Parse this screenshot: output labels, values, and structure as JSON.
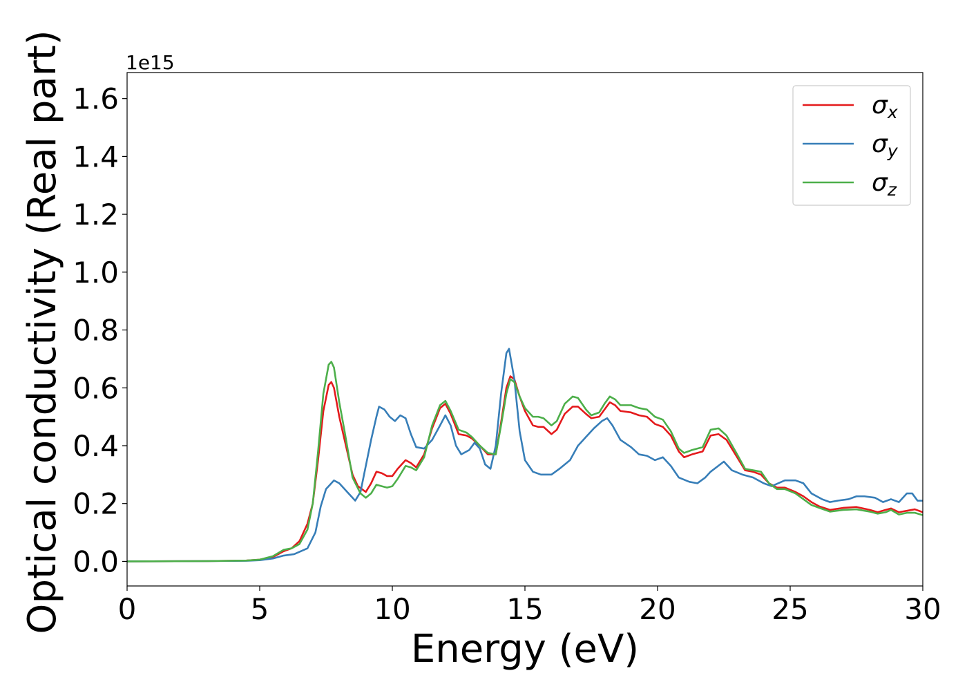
{
  "chart_data": {
    "type": "line",
    "title": "",
    "xlabel": "Energy (eV)",
    "ylabel": "Optical conductivity (Real part)",
    "y_offset_label": "1e15",
    "y_scale_multiplier": 1000000000000000.0,
    "xlim": [
      0,
      30
    ],
    "ylim": [
      -0.085,
      1.69
    ],
    "xticks": [
      0,
      5,
      10,
      15,
      20,
      25,
      30
    ],
    "xtick_labels": [
      "0",
      "5",
      "10",
      "15",
      "20",
      "25",
      "30"
    ],
    "yticks": [
      0.0,
      0.2,
      0.4,
      0.6,
      0.8,
      1.0,
      1.2,
      1.4,
      1.6
    ],
    "ytick_labels": [
      "0.0",
      "0.2",
      "0.4",
      "0.6",
      "0.8",
      "1.0",
      "1.2",
      "1.4",
      "1.6"
    ],
    "grid": false,
    "legend_position": "top-right",
    "series": [
      {
        "name": "σx",
        "symbol": "σ",
        "subscript": "x",
        "color": "#e41a1c",
        "points": [
          [
            0,
            0
          ],
          [
            3,
            0.001
          ],
          [
            4.5,
            0.003
          ],
          [
            5,
            0.006
          ],
          [
            5.5,
            0.015
          ],
          [
            5.9,
            0.035
          ],
          [
            6.2,
            0.045
          ],
          [
            6.5,
            0.07
          ],
          [
            6.8,
            0.13
          ],
          [
            7.0,
            0.2
          ],
          [
            7.2,
            0.35
          ],
          [
            7.4,
            0.52
          ],
          [
            7.6,
            0.61
          ],
          [
            7.7,
            0.62
          ],
          [
            7.8,
            0.6
          ],
          [
            8.0,
            0.5
          ],
          [
            8.2,
            0.42
          ],
          [
            8.5,
            0.3
          ],
          [
            8.7,
            0.26
          ],
          [
            9.0,
            0.24
          ],
          [
            9.2,
            0.27
          ],
          [
            9.4,
            0.31
          ],
          [
            9.6,
            0.305
          ],
          [
            9.8,
            0.295
          ],
          [
            10.0,
            0.295
          ],
          [
            10.2,
            0.32
          ],
          [
            10.5,
            0.35
          ],
          [
            10.7,
            0.34
          ],
          [
            10.9,
            0.325
          ],
          [
            11.2,
            0.37
          ],
          [
            11.5,
            0.46
          ],
          [
            11.8,
            0.53
          ],
          [
            12.0,
            0.545
          ],
          [
            12.2,
            0.51
          ],
          [
            12.5,
            0.44
          ],
          [
            12.8,
            0.435
          ],
          [
            13.0,
            0.425
          ],
          [
            13.3,
            0.4
          ],
          [
            13.6,
            0.37
          ],
          [
            13.9,
            0.37
          ],
          [
            14.1,
            0.48
          ],
          [
            14.3,
            0.6
          ],
          [
            14.45,
            0.64
          ],
          [
            14.6,
            0.63
          ],
          [
            14.8,
            0.57
          ],
          [
            15.0,
            0.52
          ],
          [
            15.3,
            0.47
          ],
          [
            15.5,
            0.465
          ],
          [
            15.7,
            0.465
          ],
          [
            16.0,
            0.44
          ],
          [
            16.2,
            0.455
          ],
          [
            16.5,
            0.51
          ],
          [
            16.8,
            0.535
          ],
          [
            17.0,
            0.535
          ],
          [
            17.3,
            0.51
          ],
          [
            17.5,
            0.495
          ],
          [
            17.8,
            0.5
          ],
          [
            18.0,
            0.525
          ],
          [
            18.2,
            0.55
          ],
          [
            18.4,
            0.54
          ],
          [
            18.6,
            0.52
          ],
          [
            19.0,
            0.515
          ],
          [
            19.3,
            0.505
          ],
          [
            19.6,
            0.5
          ],
          [
            19.9,
            0.475
          ],
          [
            20.2,
            0.465
          ],
          [
            20.5,
            0.435
          ],
          [
            20.8,
            0.38
          ],
          [
            21.0,
            0.36
          ],
          [
            21.3,
            0.37
          ],
          [
            21.7,
            0.38
          ],
          [
            22.0,
            0.435
          ],
          [
            22.3,
            0.44
          ],
          [
            22.6,
            0.42
          ],
          [
            23.0,
            0.36
          ],
          [
            23.3,
            0.315
          ],
          [
            23.6,
            0.31
          ],
          [
            23.9,
            0.3
          ],
          [
            24.2,
            0.27
          ],
          [
            24.5,
            0.255
          ],
          [
            24.8,
            0.255
          ],
          [
            25.2,
            0.24
          ],
          [
            25.5,
            0.225
          ],
          [
            25.8,
            0.205
          ],
          [
            26.1,
            0.19
          ],
          [
            26.5,
            0.178
          ],
          [
            27.0,
            0.185
          ],
          [
            27.5,
            0.188
          ],
          [
            28.0,
            0.178
          ],
          [
            28.3,
            0.17
          ],
          [
            28.6,
            0.178
          ],
          [
            28.8,
            0.183
          ],
          [
            29.1,
            0.17
          ],
          [
            29.4,
            0.175
          ],
          [
            29.7,
            0.18
          ],
          [
            30.0,
            0.17
          ]
        ]
      },
      {
        "name": "σy",
        "symbol": "σ",
        "subscript": "y",
        "color": "#377eb8",
        "points": [
          [
            0,
            0
          ],
          [
            3,
            0.001
          ],
          [
            4.5,
            0.002
          ],
          [
            5,
            0.004
          ],
          [
            5.5,
            0.01
          ],
          [
            5.9,
            0.02
          ],
          [
            6.3,
            0.025
          ],
          [
            6.8,
            0.045
          ],
          [
            7.1,
            0.1
          ],
          [
            7.3,
            0.19
          ],
          [
            7.5,
            0.25
          ],
          [
            7.8,
            0.28
          ],
          [
            8.0,
            0.27
          ],
          [
            8.3,
            0.24
          ],
          [
            8.6,
            0.21
          ],
          [
            8.8,
            0.24
          ],
          [
            9.0,
            0.33
          ],
          [
            9.2,
            0.42
          ],
          [
            9.4,
            0.5
          ],
          [
            9.5,
            0.535
          ],
          [
            9.7,
            0.525
          ],
          [
            9.9,
            0.5
          ],
          [
            10.1,
            0.485
          ],
          [
            10.3,
            0.505
          ],
          [
            10.5,
            0.495
          ],
          [
            10.7,
            0.44
          ],
          [
            10.9,
            0.395
          ],
          [
            11.2,
            0.39
          ],
          [
            11.5,
            0.42
          ],
          [
            11.8,
            0.47
          ],
          [
            12.0,
            0.505
          ],
          [
            12.2,
            0.47
          ],
          [
            12.4,
            0.4
          ],
          [
            12.6,
            0.37
          ],
          [
            12.9,
            0.385
          ],
          [
            13.1,
            0.41
          ],
          [
            13.3,
            0.39
          ],
          [
            13.5,
            0.335
          ],
          [
            13.7,
            0.32
          ],
          [
            13.9,
            0.4
          ],
          [
            14.1,
            0.58
          ],
          [
            14.3,
            0.72
          ],
          [
            14.4,
            0.735
          ],
          [
            14.6,
            0.63
          ],
          [
            14.8,
            0.45
          ],
          [
            15.0,
            0.35
          ],
          [
            15.3,
            0.31
          ],
          [
            15.6,
            0.3
          ],
          [
            16.0,
            0.3
          ],
          [
            16.3,
            0.32
          ],
          [
            16.7,
            0.35
          ],
          [
            17.0,
            0.4
          ],
          [
            17.3,
            0.43
          ],
          [
            17.6,
            0.46
          ],
          [
            17.9,
            0.485
          ],
          [
            18.1,
            0.495
          ],
          [
            18.3,
            0.47
          ],
          [
            18.6,
            0.42
          ],
          [
            19.0,
            0.395
          ],
          [
            19.3,
            0.37
          ],
          [
            19.6,
            0.365
          ],
          [
            19.9,
            0.35
          ],
          [
            20.2,
            0.36
          ],
          [
            20.5,
            0.33
          ],
          [
            20.8,
            0.29
          ],
          [
            21.2,
            0.275
          ],
          [
            21.5,
            0.27
          ],
          [
            21.8,
            0.29
          ],
          [
            22.0,
            0.31
          ],
          [
            22.5,
            0.345
          ],
          [
            22.8,
            0.315
          ],
          [
            23.2,
            0.3
          ],
          [
            23.6,
            0.29
          ],
          [
            24.0,
            0.27
          ],
          [
            24.3,
            0.26
          ],
          [
            24.8,
            0.28
          ],
          [
            25.2,
            0.28
          ],
          [
            25.5,
            0.27
          ],
          [
            25.8,
            0.235
          ],
          [
            26.2,
            0.215
          ],
          [
            26.5,
            0.205
          ],
          [
            26.8,
            0.21
          ],
          [
            27.2,
            0.215
          ],
          [
            27.5,
            0.225
          ],
          [
            27.8,
            0.225
          ],
          [
            28.2,
            0.22
          ],
          [
            28.5,
            0.205
          ],
          [
            28.8,
            0.215
          ],
          [
            29.1,
            0.205
          ],
          [
            29.4,
            0.235
          ],
          [
            29.6,
            0.235
          ],
          [
            29.8,
            0.21
          ],
          [
            30.0,
            0.21
          ]
        ]
      },
      {
        "name": "σz",
        "symbol": "σ",
        "subscript": "z",
        "color": "#4daf4a",
        "points": [
          [
            0,
            0
          ],
          [
            3,
            0.001
          ],
          [
            4.5,
            0.003
          ],
          [
            5,
            0.006
          ],
          [
            5.5,
            0.018
          ],
          [
            5.9,
            0.04
          ],
          [
            6.2,
            0.045
          ],
          [
            6.5,
            0.06
          ],
          [
            6.8,
            0.11
          ],
          [
            7.0,
            0.2
          ],
          [
            7.2,
            0.38
          ],
          [
            7.4,
            0.58
          ],
          [
            7.6,
            0.68
          ],
          [
            7.7,
            0.69
          ],
          [
            7.8,
            0.67
          ],
          [
            8.0,
            0.55
          ],
          [
            8.2,
            0.45
          ],
          [
            8.5,
            0.29
          ],
          [
            8.8,
            0.235
          ],
          [
            9.0,
            0.22
          ],
          [
            9.2,
            0.235
          ],
          [
            9.4,
            0.265
          ],
          [
            9.6,
            0.26
          ],
          [
            9.8,
            0.255
          ],
          [
            10.0,
            0.26
          ],
          [
            10.2,
            0.285
          ],
          [
            10.5,
            0.33
          ],
          [
            10.7,
            0.325
          ],
          [
            10.9,
            0.315
          ],
          [
            11.2,
            0.36
          ],
          [
            11.5,
            0.47
          ],
          [
            11.8,
            0.54
          ],
          [
            12.0,
            0.555
          ],
          [
            12.2,
            0.52
          ],
          [
            12.5,
            0.455
          ],
          [
            12.8,
            0.445
          ],
          [
            13.0,
            0.43
          ],
          [
            13.3,
            0.4
          ],
          [
            13.6,
            0.375
          ],
          [
            13.9,
            0.37
          ],
          [
            14.1,
            0.47
          ],
          [
            14.3,
            0.58
          ],
          [
            14.45,
            0.63
          ],
          [
            14.6,
            0.62
          ],
          [
            14.8,
            0.57
          ],
          [
            15.0,
            0.53
          ],
          [
            15.3,
            0.5
          ],
          [
            15.5,
            0.5
          ],
          [
            15.7,
            0.495
          ],
          [
            16.0,
            0.47
          ],
          [
            16.2,
            0.485
          ],
          [
            16.5,
            0.545
          ],
          [
            16.8,
            0.57
          ],
          [
            17.0,
            0.565
          ],
          [
            17.3,
            0.525
          ],
          [
            17.5,
            0.505
          ],
          [
            17.8,
            0.515
          ],
          [
            18.0,
            0.545
          ],
          [
            18.2,
            0.57
          ],
          [
            18.4,
            0.56
          ],
          [
            18.6,
            0.54
          ],
          [
            19.0,
            0.54
          ],
          [
            19.3,
            0.53
          ],
          [
            19.6,
            0.525
          ],
          [
            19.9,
            0.5
          ],
          [
            20.2,
            0.49
          ],
          [
            20.5,
            0.45
          ],
          [
            20.8,
            0.39
          ],
          [
            21.0,
            0.375
          ],
          [
            21.3,
            0.385
          ],
          [
            21.7,
            0.395
          ],
          [
            22.0,
            0.455
          ],
          [
            22.3,
            0.46
          ],
          [
            22.6,
            0.435
          ],
          [
            23.0,
            0.37
          ],
          [
            23.3,
            0.32
          ],
          [
            23.6,
            0.315
          ],
          [
            23.9,
            0.31
          ],
          [
            24.2,
            0.27
          ],
          [
            24.5,
            0.25
          ],
          [
            24.8,
            0.25
          ],
          [
            25.2,
            0.235
          ],
          [
            25.5,
            0.215
          ],
          [
            25.8,
            0.195
          ],
          [
            26.1,
            0.185
          ],
          [
            26.5,
            0.172
          ],
          [
            27.0,
            0.178
          ],
          [
            27.5,
            0.18
          ],
          [
            28.0,
            0.172
          ],
          [
            28.3,
            0.165
          ],
          [
            28.6,
            0.17
          ],
          [
            28.8,
            0.178
          ],
          [
            29.1,
            0.162
          ],
          [
            29.4,
            0.168
          ],
          [
            29.7,
            0.168
          ],
          [
            30.0,
            0.16
          ]
        ]
      }
    ]
  }
}
